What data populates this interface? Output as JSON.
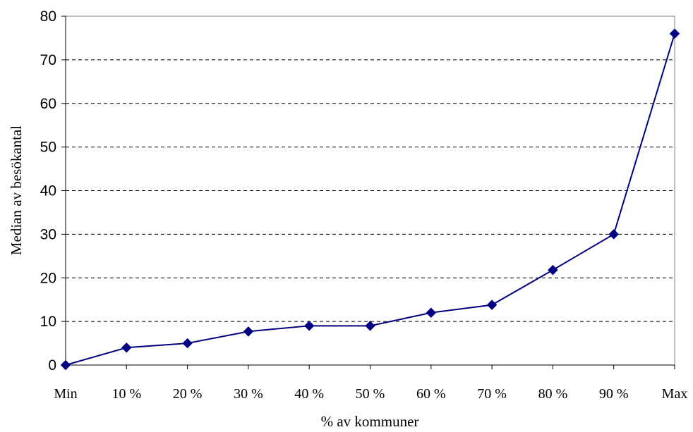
{
  "chart_data": {
    "type": "line",
    "title": "",
    "xlabel": "% av kommuner",
    "ylabel": "Median av besökantal",
    "categories": [
      "Min",
      "10 %",
      "20 %",
      "30 %",
      "40 %",
      "50 %",
      "60 %",
      "70 %",
      "80 %",
      "90 %",
      "Max"
    ],
    "series": [
      {
        "values": [
          0,
          4,
          5,
          7.7,
          9,
          9,
          12,
          13.8,
          21.8,
          30,
          76
        ]
      }
    ],
    "ylim": [
      0,
      80
    ],
    "yticks": [
      "0",
      "10",
      "20",
      "30",
      "40",
      "50",
      "60",
      "70",
      "80"
    ],
    "grid": "horizontal dashed",
    "marker": "diamond",
    "color": "#000080",
    "legend": "none"
  }
}
